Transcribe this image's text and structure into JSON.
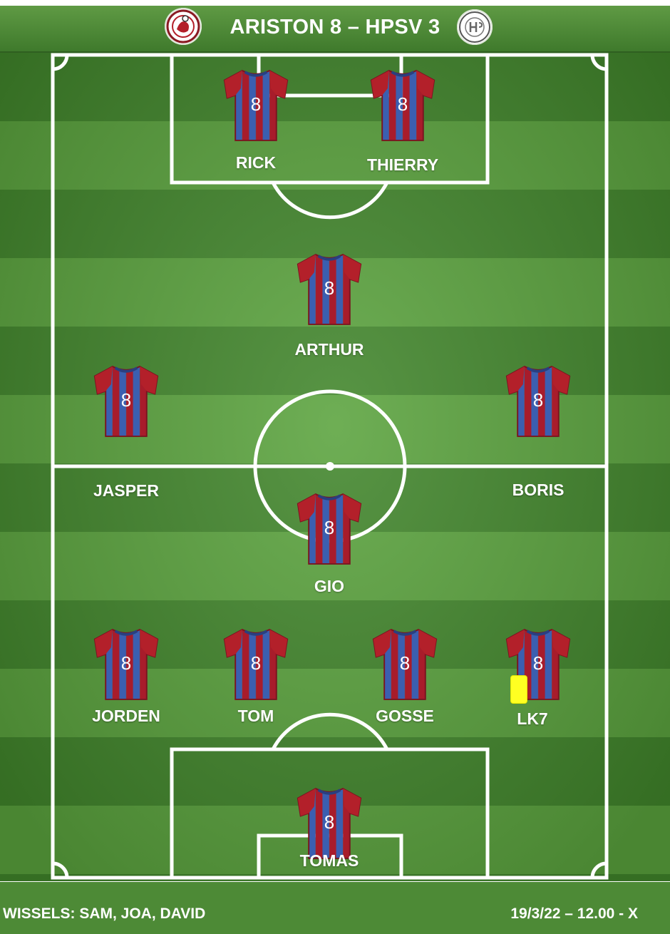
{
  "header": {
    "title": "ARISTON 8 – HPSV 3"
  },
  "players": [
    {
      "name": "RICK",
      "number": "8"
    },
    {
      "name": "THIERRY",
      "number": "8"
    },
    {
      "name": "ARTHUR",
      "number": "8"
    },
    {
      "name": "JASPER",
      "number": "8"
    },
    {
      "name": "BORIS",
      "number": "8"
    },
    {
      "name": "GIO",
      "number": "8"
    },
    {
      "name": "JORDEN",
      "number": "8"
    },
    {
      "name": "TOM",
      "number": "8"
    },
    {
      "name": "GOSSE",
      "number": "8"
    },
    {
      "name": "LK7",
      "number": "8"
    },
    {
      "name": "TOMAS",
      "number": "8"
    }
  ],
  "footer": {
    "substitutes": "WISSELS: SAM, JOA, DAVID",
    "match_info": "19/3/22 – 12.00 - X"
  },
  "colors": {
    "pitch_dark": "#41862b",
    "pitch_light": "#5aa33d",
    "shirt_red": "#b3202a",
    "shirt_blue": "#3b5fb0",
    "yellow_card": "#ffff22"
  },
  "icons": {
    "logo_left": "ariston-club-logo",
    "logo_right": "hpsv-club-logo"
  }
}
